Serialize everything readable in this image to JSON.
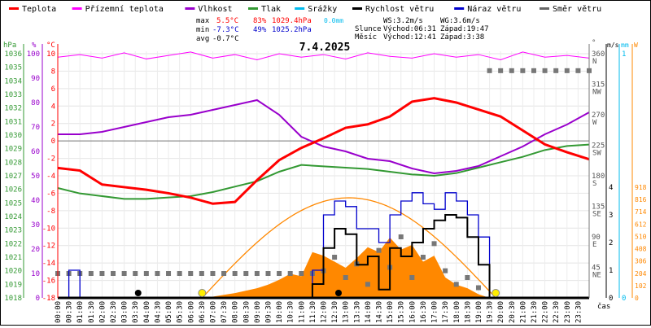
{
  "legend": [
    {
      "label": "Teplota",
      "color": "#ff0000"
    },
    {
      "label": "Přízemní teplota",
      "color": "#ff00ff"
    },
    {
      "label": "Vlhkost",
      "color": "#9900cc"
    },
    {
      "label": "Tlak",
      "color": "#339933"
    },
    {
      "label": "Srážky",
      "color": "#00bbee"
    },
    {
      "label": "Rychlost větru",
      "color": "#000000"
    },
    {
      "label": "Náraz větru",
      "color": "#0000cc"
    },
    {
      "label": "Směr větru",
      "color": "#666666"
    }
  ],
  "stats": {
    "max_label": "max",
    "max_temp": "5.5°C",
    "max_hum": "83%",
    "max_pres": "1029.4hPa",
    "max_rain": "0.0mm",
    "min_label": "min",
    "min_temp": "-7.3°C",
    "min_hum": "49%",
    "min_pres": "1025.2hPa",
    "avg_label": "avg",
    "avg_temp": "-0.7°C"
  },
  "wind_info": {
    "ws": "WS:3.2m/s",
    "wg": "WG:3.6m/s"
  },
  "sun": {
    "label": "Slunce",
    "rise": "Východ:06:31",
    "set": "Západ:19:47"
  },
  "moon": {
    "label": "Měsíc",
    "rise": "Východ:12:41",
    "set": "Západ:3:38"
  },
  "chart_data": {
    "type": "line",
    "title": "7.4.2025",
    "xlabel": "čas",
    "x_ticks": [
      "00:00",
      "00:30",
      "01:00",
      "01:30",
      "02:00",
      "02:30",
      "03:00",
      "03:30",
      "04:00",
      "04:30",
      "05:00",
      "05:30",
      "06:00",
      "06:30",
      "07:00",
      "07:30",
      "08:00",
      "08:30",
      "09:00",
      "09:30",
      "10:00",
      "10:30",
      "11:00",
      "11:30",
      "12:00",
      "12:30",
      "13:00",
      "13:30",
      "14:00",
      "14:30",
      "15:00",
      "15:30",
      "16:00",
      "16:30",
      "17:00",
      "17:30",
      "18:00",
      "18:30",
      "19:00",
      "19:30",
      "20:00",
      "20:30",
      "21:00",
      "21:30",
      "22:00",
      "22:30",
      "23:00",
      "23:30"
    ],
    "axes": {
      "pressure": {
        "unit": "hPa",
        "range": [
          1018,
          1036
        ],
        "color": "#339933"
      },
      "humidity": {
        "unit": "%",
        "range": [
          0,
          100
        ],
        "color": "#9900cc"
      },
      "temperature": {
        "unit": "°C",
        "range": [
          -18,
          10
        ],
        "color": "#ff0000"
      },
      "direction": {
        "unit": "°",
        "ticks": [
          {
            "v": 45,
            "c": "NE"
          },
          {
            "v": 90,
            "c": "E"
          },
          {
            "v": 135,
            "c": "SE"
          },
          {
            "v": 180,
            "c": "S"
          },
          {
            "v": 225,
            "c": "SW"
          },
          {
            "v": 270,
            "c": "W"
          },
          {
            "v": 315,
            "c": "NW"
          },
          {
            "v": 360,
            "c": "N"
          }
        ]
      },
      "wind": {
        "unit": "m/s",
        "range": [
          0,
          4
        ]
      },
      "rain": {
        "unit": "mm",
        "range": [
          0,
          1
        ]
      },
      "solar": {
        "unit": "W",
        "ticks": [
          0,
          102,
          204,
          306,
          408,
          510,
          612,
          714,
          816,
          918
        ]
      }
    },
    "hours": [
      0,
      1,
      2,
      3,
      4,
      5,
      6,
      7,
      8,
      9,
      10,
      11,
      12,
      13,
      14,
      15,
      16,
      17,
      18,
      19,
      20,
      21,
      22,
      23,
      24
    ],
    "series": {
      "temperature": [
        -3.1,
        -3.4,
        -5.0,
        -5.3,
        -5.6,
        -6.0,
        -6.5,
        -7.2,
        -7.0,
        -4.5,
        -2.2,
        -0.8,
        0.3,
        1.5,
        1.9,
        2.8,
        4.5,
        4.9,
        4.4,
        3.6,
        2.8,
        1.2,
        -0.4,
        -1.3,
        -2.1
      ],
      "ground_temperature": [
        9.6,
        9.9,
        9.5,
        10.1,
        9.4,
        9.8,
        10.2,
        9.5,
        9.9,
        9.3,
        10.0,
        9.6,
        9.9,
        9.4,
        10.1,
        9.7,
        9.5,
        10.0,
        9.6,
        9.9,
        9.3,
        10.2,
        9.6,
        9.8,
        9.5
      ],
      "humidity": [
        67,
        67,
        68,
        70,
        72,
        74,
        75,
        77,
        79,
        81,
        75,
        66,
        62,
        60,
        57,
        56,
        53,
        51,
        52,
        54,
        58,
        62,
        67,
        71,
        76
      ],
      "pressure": [
        1026.1,
        1025.7,
        1025.5,
        1025.3,
        1025.3,
        1025.4,
        1025.5,
        1025.8,
        1026.2,
        1026.6,
        1027.3,
        1027.8,
        1027.7,
        1027.6,
        1027.5,
        1027.3,
        1027.1,
        1027.0,
        1027.2,
        1027.6,
        1028.0,
        1028.4,
        1028.9,
        1029.2,
        1029.3
      ],
      "rain": [
        0,
        0,
        0,
        0,
        0,
        0,
        0,
        0,
        0,
        0,
        0,
        0,
        0,
        0,
        0,
        0,
        0,
        0,
        0,
        0,
        0,
        0,
        0,
        0,
        0
      ]
    },
    "half_hour_series": {
      "wind_speed": [
        0,
        0,
        0,
        0,
        0,
        0,
        0,
        0,
        0,
        0,
        0,
        0,
        0,
        0,
        0,
        0,
        0,
        0,
        0,
        0,
        0,
        0,
        0,
        0.5,
        1.8,
        2.5,
        2.3,
        1.2,
        1.5,
        0.3,
        1.8,
        1.5,
        2.0,
        2.5,
        2.8,
        3.0,
        2.9,
        2.2,
        1.2,
        0,
        0,
        0,
        0,
        0,
        0,
        0,
        0,
        0,
        0
      ],
      "wind_gust": [
        0,
        1.0,
        0,
        0,
        0,
        0,
        0,
        0,
        0,
        0,
        0,
        0,
        0,
        0,
        0,
        0,
        0,
        0,
        0,
        0,
        0,
        0,
        0,
        1.0,
        3.0,
        3.5,
        3.3,
        2.5,
        2.5,
        2.0,
        3.0,
        3.5,
        3.8,
        3.4,
        3.2,
        3.8,
        3.5,
        3.0,
        2.2,
        0,
        0,
        0,
        0,
        0,
        0,
        0,
        0,
        0,
        0
      ],
      "solar": [
        0,
        0,
        0,
        0,
        0,
        0,
        0,
        0,
        0,
        0,
        0,
        0,
        0,
        0,
        10,
        25,
        40,
        60,
        80,
        110,
        150,
        200,
        180,
        380,
        350,
        300,
        250,
        330,
        420,
        380,
        500,
        400,
        440,
        300,
        350,
        170,
        110,
        80,
        30,
        0,
        0,
        0,
        0,
        0,
        0,
        0,
        0,
        0,
        0
      ],
      "wind_direction": [
        36,
        36,
        36,
        36,
        36,
        36,
        36,
        36,
        36,
        36,
        36,
        36,
        36,
        36,
        36,
        36,
        36,
        36,
        36,
        36,
        36,
        36,
        36,
        36,
        40,
        60,
        30,
        50,
        20,
        70,
        45,
        90,
        30,
        60,
        80,
        40,
        20,
        30,
        15,
        335,
        335,
        335,
        335,
        335,
        335,
        335,
        335,
        335,
        335
      ]
    },
    "sun_theoretical": {
      "rise_h": 6.52,
      "set_h": 19.78,
      "peak_w": 830
    },
    "events": [
      {
        "h": 3.63,
        "kind": "moon"
      },
      {
        "h": 6.52,
        "kind": "sun"
      },
      {
        "h": 12.68,
        "kind": "moon"
      },
      {
        "h": 19.78,
        "kind": "sun"
      }
    ]
  }
}
